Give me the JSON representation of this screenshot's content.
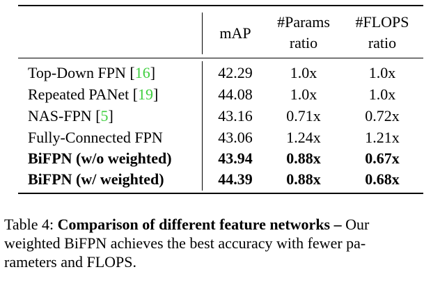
{
  "table": {
    "headers": {
      "map": "mAP",
      "params_line1": "#Params",
      "params_line2": "ratio",
      "flops_line1": "#FLOPS",
      "flops_line2": "ratio"
    },
    "rows": [
      {
        "method": "Top-Down FPN [",
        "cite": "16",
        "close": "]",
        "map": "42.29",
        "params": "1.0x",
        "flops": "1.0x",
        "bold": false
      },
      {
        "method": "Repeated PANet [",
        "cite": "19",
        "close": "]",
        "map": "44.08",
        "params": "1.0x",
        "flops": "1.0x",
        "bold": false
      },
      {
        "method": "NAS-FPN [",
        "cite": "5",
        "close": "]",
        "map": "43.16",
        "params": "0.71x",
        "flops": "0.72x",
        "bold": false
      },
      {
        "method": "Fully-Connected FPN",
        "cite": "",
        "close": "",
        "map": "43.06",
        "params": "1.24x",
        "flops": "1.21x",
        "bold": false
      },
      {
        "method": "BiFPN (w/o weighted)",
        "cite": "",
        "close": "",
        "map": "43.94",
        "params": "0.88x",
        "flops": "0.67x",
        "bold": true
      },
      {
        "method": "BiFPN (w/ weighted)",
        "cite": "",
        "close": "",
        "map": "44.39",
        "params": "0.88x",
        "flops": "0.68x",
        "bold": true
      }
    ]
  },
  "caption": {
    "label": "Table 4:",
    "bold_text": "Comparison of different feature networks –",
    "line1_tail": "Our",
    "line2": "weighted BiFPN achieves the best accuracy with fewer pa-",
    "line3": "rameters and FLOPS."
  },
  "colors": {
    "citation": "#3fcf3f",
    "text": "#000000"
  }
}
